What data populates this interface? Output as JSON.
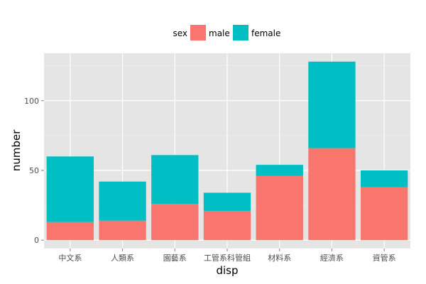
{
  "colors": {
    "panel_background": "#e5e5e5",
    "grid_major": "#ffffff",
    "grid_minor": "#f2f2f2",
    "male": "#f8766d",
    "female": "#00bfc4",
    "tick_text": "#4d4d4d"
  },
  "chart_data": {
    "type": "bar",
    "stacked": true,
    "xlabel": "disp",
    "ylabel": "number",
    "ylim": [
      -6,
      134
    ],
    "yticks": [
      0,
      50,
      100
    ],
    "grid": true,
    "legend": {
      "title": "sex",
      "position": "top",
      "entries": [
        "male",
        "female"
      ]
    },
    "categories": [
      "中文系",
      "人類系",
      "園藝系",
      "工管系科管組",
      "材料系",
      "經濟系",
      "資管系"
    ],
    "series": [
      {
        "name": "male",
        "values": [
          13,
          14,
          26,
          21,
          46,
          66,
          38
        ]
      },
      {
        "name": "female",
        "values": [
          47,
          28,
          35,
          13,
          8,
          62,
          12
        ]
      }
    ]
  }
}
